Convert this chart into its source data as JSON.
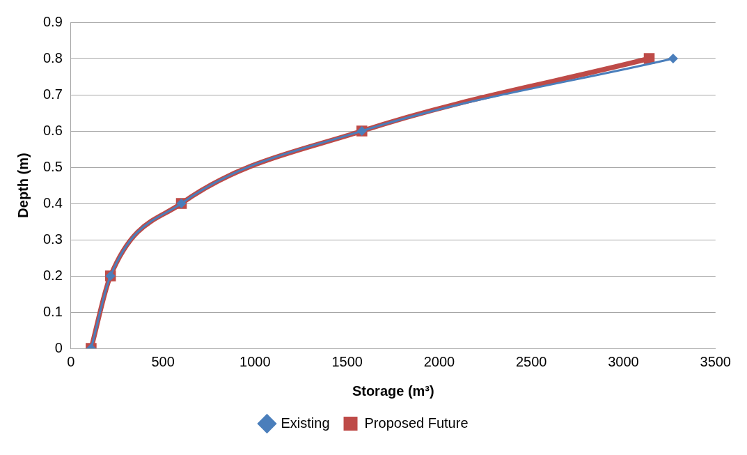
{
  "chart_data": {
    "type": "line",
    "xlabel": "Storage (m³)",
    "ylabel": "Depth (m)",
    "xlim": [
      0,
      3500
    ],
    "xticks": [
      0,
      500,
      1000,
      1500,
      2000,
      2500,
      3000,
      3500
    ],
    "ylim": [
      0,
      0.9
    ],
    "yticks": [
      0,
      0.1,
      0.2,
      0.3,
      0.4,
      0.5,
      0.6,
      0.7,
      0.8,
      0.9
    ],
    "grid": "y",
    "legend": "bottom",
    "line_style": "solid",
    "series": [
      {
        "name": "Existing",
        "color": "#4a7ebb",
        "marker": "diamond",
        "x": [
          110,
          215,
          600,
          1580,
          3270
        ],
        "values": [
          0,
          0.2,
          0.4,
          0.6,
          0.8
        ]
      },
      {
        "name": "Proposed Future",
        "color": "#be4b48",
        "marker": "square",
        "x": [
          110,
          215,
          600,
          1580,
          3140
        ],
        "values": [
          0,
          0.2,
          0.4,
          0.6,
          0.8
        ]
      }
    ]
  }
}
